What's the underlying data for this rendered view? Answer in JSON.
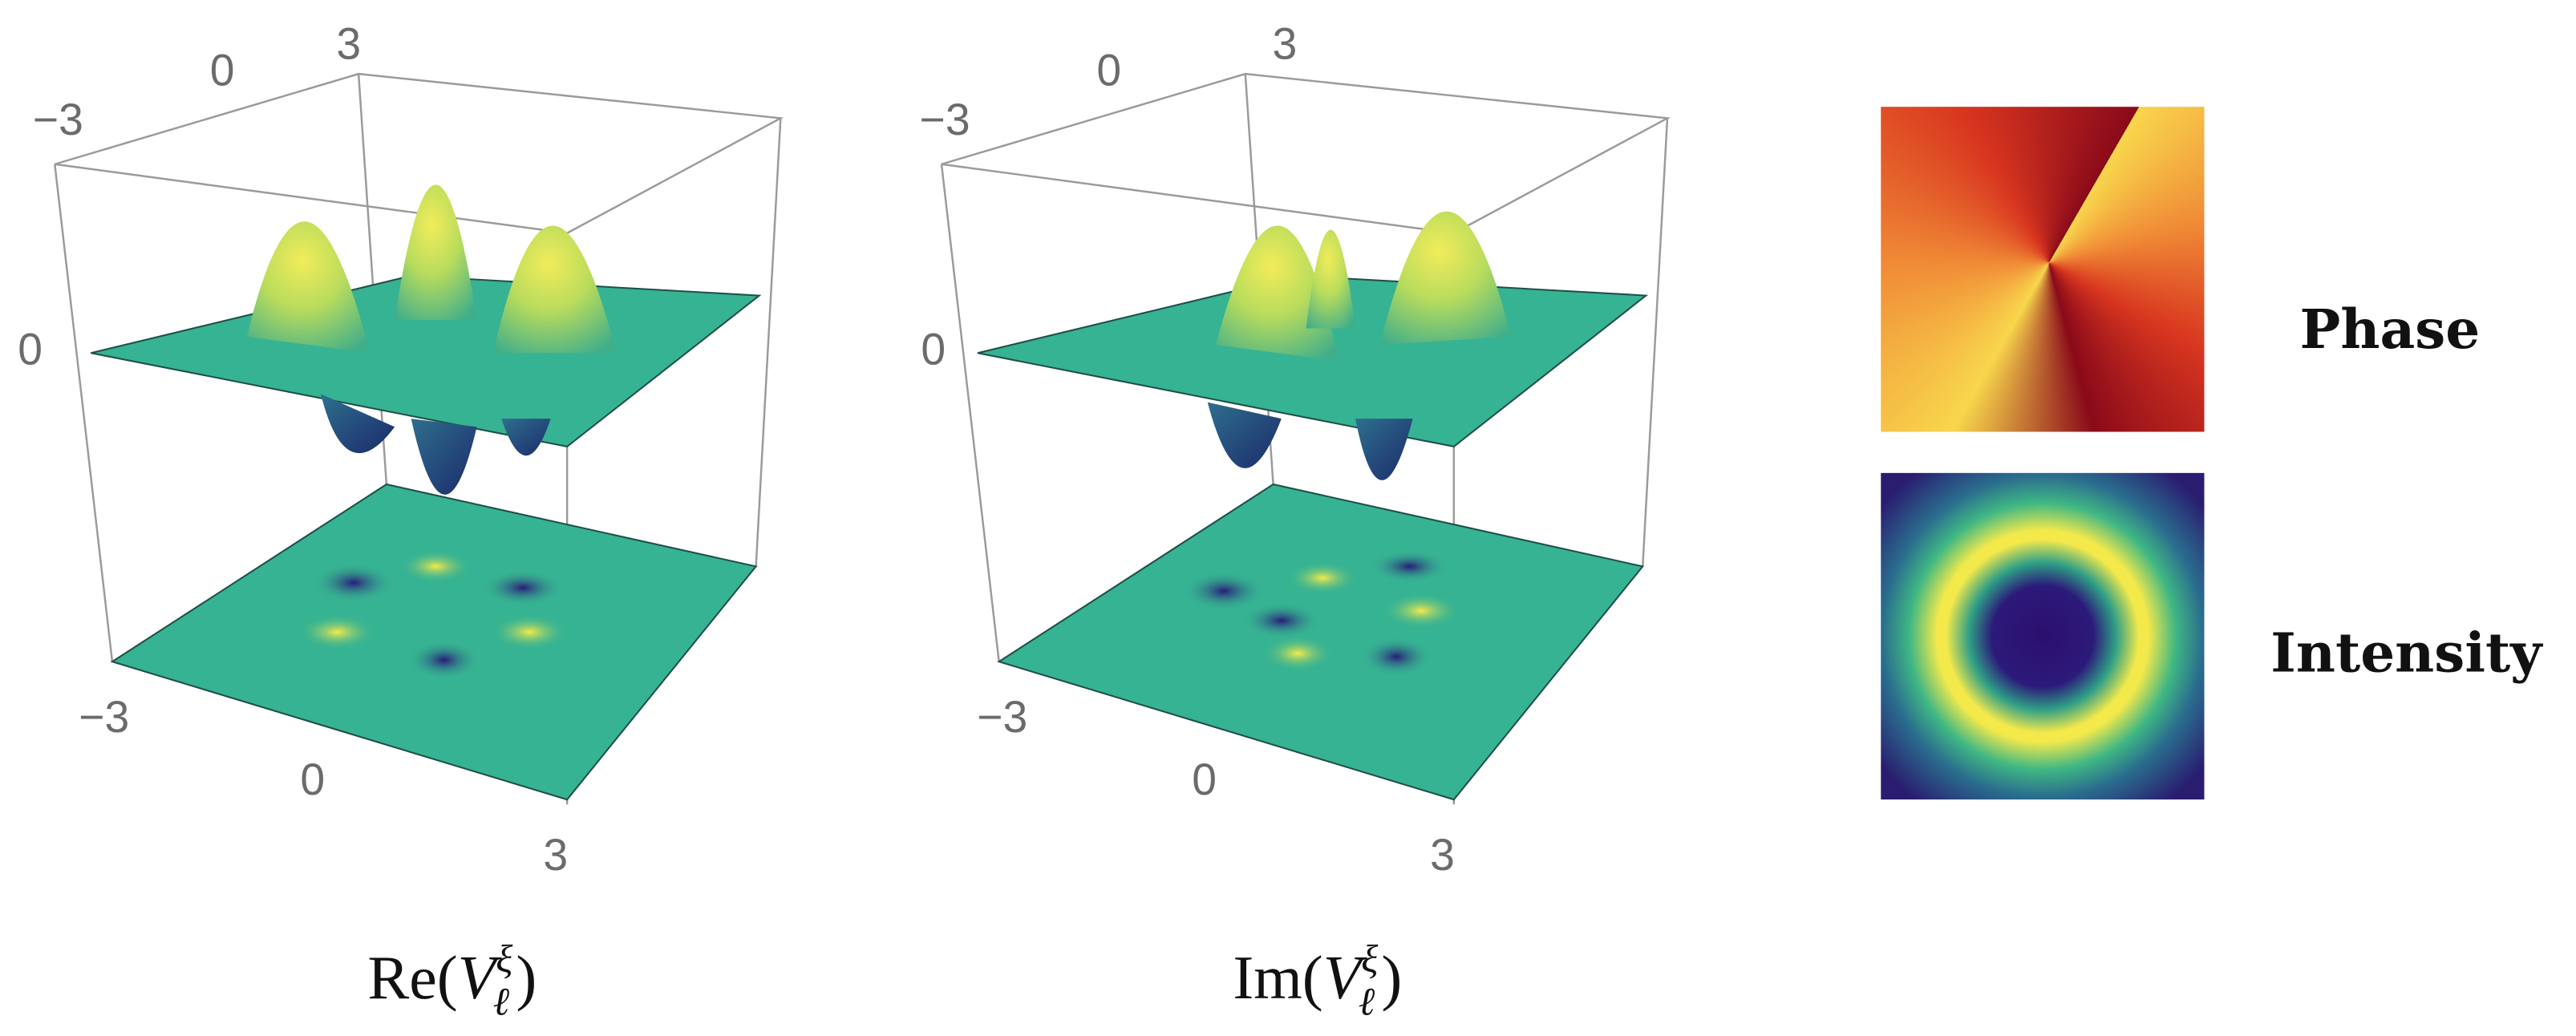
{
  "panels": [
    {
      "back_axis": [
        "−3",
        "0",
        "3"
      ],
      "z_axis": [
        "0"
      ],
      "front_axis": [
        "−3",
        "0",
        "3"
      ],
      "caption": {
        "prefix": "Re(",
        "symbol": "V",
        "subscript": "ℓ",
        "superscript": "ξ",
        "suffix": ")"
      }
    },
    {
      "back_axis": [
        "−3",
        "0",
        "3"
      ],
      "z_axis": [
        "0"
      ],
      "front_axis": [
        "−3",
        "0",
        "3"
      ],
      "caption": {
        "prefix": "Im(",
        "symbol": "V",
        "subscript": "ℓ",
        "superscript": "ξ",
        "suffix": ")"
      }
    }
  ],
  "images": [
    {
      "label": "Phase"
    },
    {
      "label": "Intensity"
    }
  ]
}
